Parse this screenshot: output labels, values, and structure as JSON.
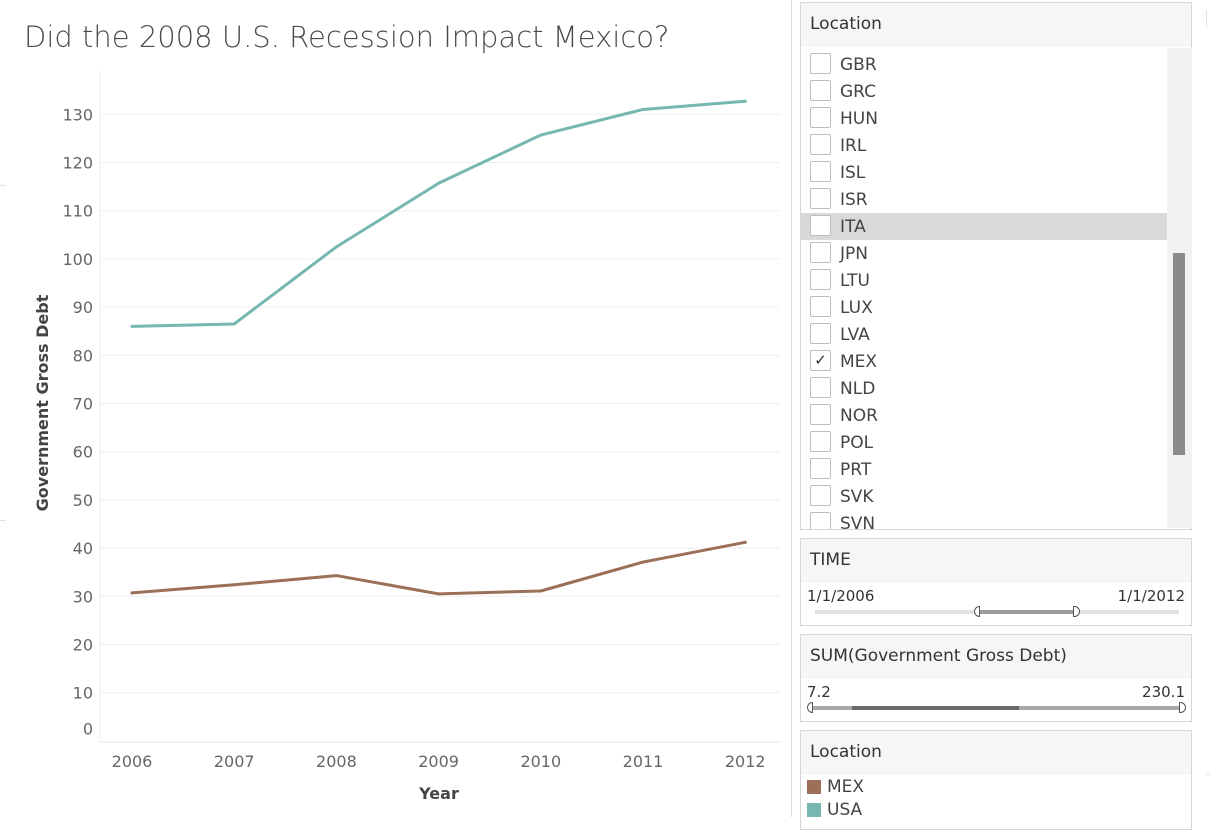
{
  "title": "Did the 2008 U.S. Recession Impact Mexico?",
  "chart_data": {
    "type": "line",
    "x": [
      2006,
      2007,
      2008,
      2009,
      2010,
      2011,
      2012
    ],
    "series": [
      {
        "name": "USA",
        "color": "#76b7b2",
        "values": [
          86.0,
          86.5,
          102.5,
          115.7,
          125.7,
          131.0,
          132.7
        ]
      },
      {
        "name": "MEX",
        "color": "#9c7058",
        "values": [
          30.7,
          32.4,
          34.3,
          30.5,
          31.1,
          37.1,
          41.2
        ]
      }
    ],
    "xlabel": "Year",
    "ylabel": "Government Gross Debt",
    "yticks": [
      0,
      10,
      20,
      30,
      40,
      50,
      60,
      70,
      80,
      90,
      100,
      110,
      120,
      130
    ],
    "xticks": [
      "2006",
      "2007",
      "2008",
      "2009",
      "2010",
      "2011",
      "2012"
    ],
    "grid": true
  },
  "filters": {
    "location": {
      "title": "Location",
      "items": [
        {
          "label": "GBR",
          "checked": false,
          "highlight": false
        },
        {
          "label": "GRC",
          "checked": false,
          "highlight": false
        },
        {
          "label": "HUN",
          "checked": false,
          "highlight": false
        },
        {
          "label": "IRL",
          "checked": false,
          "highlight": false
        },
        {
          "label": "ISL",
          "checked": false,
          "highlight": false
        },
        {
          "label": "ISR",
          "checked": false,
          "highlight": false
        },
        {
          "label": "ITA",
          "checked": false,
          "highlight": true
        },
        {
          "label": "JPN",
          "checked": false,
          "highlight": false
        },
        {
          "label": "LTU",
          "checked": false,
          "highlight": false
        },
        {
          "label": "LUX",
          "checked": false,
          "highlight": false
        },
        {
          "label": "LVA",
          "checked": false,
          "highlight": false
        },
        {
          "label": "MEX",
          "checked": true,
          "highlight": false
        },
        {
          "label": "NLD",
          "checked": false,
          "highlight": false
        },
        {
          "label": "NOR",
          "checked": false,
          "highlight": false
        },
        {
          "label": "POL",
          "checked": false,
          "highlight": false
        },
        {
          "label": "PRT",
          "checked": false,
          "highlight": false
        },
        {
          "label": "SVK",
          "checked": false,
          "highlight": false
        },
        {
          "label": "SVN",
          "checked": false,
          "highlight": false
        }
      ]
    },
    "time": {
      "title": "TIME",
      "min_label": "1/1/2006",
      "max_label": "1/1/2012"
    },
    "debt": {
      "title": "SUM(Government Gross Debt)",
      "min_label": "7.2",
      "max_label": "230.1"
    }
  },
  "legend": {
    "title": "Location",
    "items": [
      {
        "label": "MEX",
        "color": "#9c7058"
      },
      {
        "label": "USA",
        "color": "#76b7b2"
      }
    ]
  }
}
